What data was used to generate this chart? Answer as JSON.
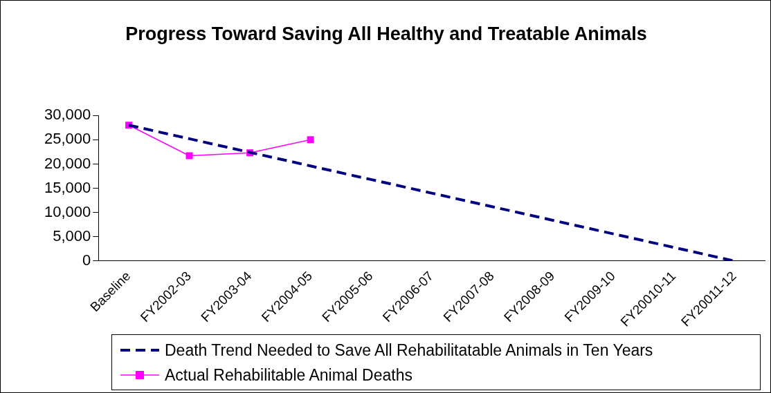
{
  "chart_data": {
    "type": "line",
    "title": "Progress Toward Saving All Healthy and Treatable Animals",
    "categories": [
      "Baseline",
      "FY2002-03",
      "FY2003-04",
      "FY2004-05",
      "FY2005-06",
      "FY2006-07",
      "FY2007-08",
      "FY2008-09",
      "FY2009-10",
      "FY20010-11",
      "FY20011-12"
    ],
    "series": [
      {
        "name": "Death Trend Needed to Save All Rehabilitatable Animals in Ten Years",
        "color": "#000080",
        "line_style": "dashed",
        "marker": "none",
        "values": [
          28000,
          25200,
          22400,
          19600,
          16800,
          14000,
          11200,
          8400,
          5600,
          2800,
          0
        ]
      },
      {
        "name": "Actual Rehabilitable Animal Deaths",
        "color": "#ff00ff",
        "line_style": "solid",
        "marker": "square",
        "values": [
          28000,
          21700,
          22300,
          25000,
          null,
          null,
          null,
          null,
          null,
          null,
          null
        ]
      }
    ],
    "ylim": [
      0,
      30000
    ],
    "yticks": [
      {
        "value": 0,
        "label": "0"
      },
      {
        "value": 5000,
        "label": "5,000"
      },
      {
        "value": 10000,
        "label": "10,000"
      },
      {
        "value": 15000,
        "label": "15,000"
      },
      {
        "value": 20000,
        "label": "20,000"
      },
      {
        "value": 25000,
        "label": "25,000"
      },
      {
        "value": 30000,
        "label": "30,000"
      }
    ],
    "grid": false,
    "legend": "bottom"
  }
}
